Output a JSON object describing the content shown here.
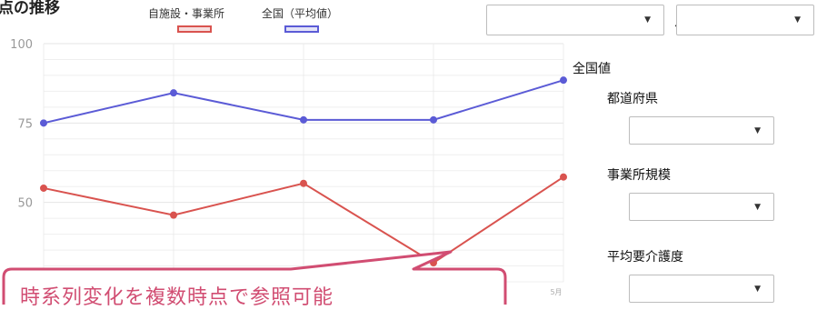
{
  "page": {
    "title_fragment": "点の推移"
  },
  "legend": {
    "local_label": "自施設・事業所",
    "nation_label": "全国（平均値）",
    "local_color": "#d9534f",
    "nation_color": "#5b5bd6"
  },
  "range": {
    "separator": "～",
    "from_value": "",
    "to_value": ""
  },
  "side_panel": {
    "nation_label": "全国値",
    "pref_label": "都道府県",
    "size_label": "事業所規模",
    "care_label": "平均要介護度"
  },
  "callout": {
    "text": "時系列変化を複数時点で参照可能",
    "border_color": "#d14d72"
  },
  "chart_data": {
    "type": "line",
    "ylim": [
      25,
      100
    ],
    "y_ticks": [
      100,
      75,
      50
    ],
    "x_tick_labels": [
      "",
      "",
      "",
      "",
      "5月"
    ],
    "series": [
      {
        "name": "自施設・事業所",
        "color": "#d9534f",
        "values": [
          54.5,
          46,
          56,
          31,
          58
        ]
      },
      {
        "name": "全国（平均値）",
        "color": "#5b5bd6",
        "values": [
          75,
          84.5,
          76,
          76,
          88.5
        ]
      }
    ]
  }
}
